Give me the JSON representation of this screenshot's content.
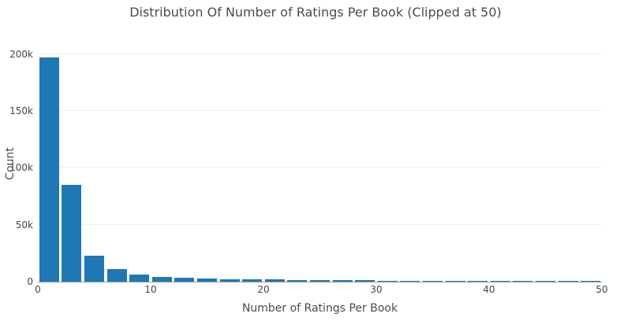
{
  "chart_data": {
    "type": "bar",
    "subtype": "histogram",
    "title": "Distribution Of Number of Ratings Per Book (Clipped at 50)",
    "xlabel": "Number of Ratings Per Book",
    "ylabel": "Count",
    "xlim": [
      0,
      50
    ],
    "ylim": [
      0,
      208000
    ],
    "bin_width": 2,
    "bin_starts": [
      0,
      2,
      4,
      6,
      8,
      10,
      12,
      14,
      16,
      18,
      20,
      22,
      24,
      26,
      28,
      30,
      32,
      34,
      36,
      38,
      40,
      42,
      44,
      46,
      48
    ],
    "values": [
      197000,
      85000,
      23000,
      11000,
      6000,
      4300,
      3400,
      2800,
      2400,
      2100,
      1900,
      1700,
      1400,
      1300,
      1200,
      1000,
      950,
      900,
      850,
      800,
      760,
      730,
      700,
      680,
      650
    ],
    "x_tick_values": [
      0,
      10,
      20,
      30,
      40,
      50
    ],
    "x_tick_labels": [
      "0",
      "10",
      "20",
      "30",
      "40",
      "50"
    ],
    "y_tick_values": [
      0,
      50000,
      100000,
      150000,
      200000
    ],
    "y_tick_labels": [
      "0",
      "50k",
      "100k",
      "150k",
      "200k"
    ],
    "bar_color": "#1f77b4",
    "grid": true,
    "legend_position": "none",
    "bar_gap_units": 0.24,
    "colors": {
      "background": "#ffffff",
      "gridline": "#eceef1",
      "axis_line": "#9a9a9a",
      "text": "#4c4c4c"
    }
  }
}
